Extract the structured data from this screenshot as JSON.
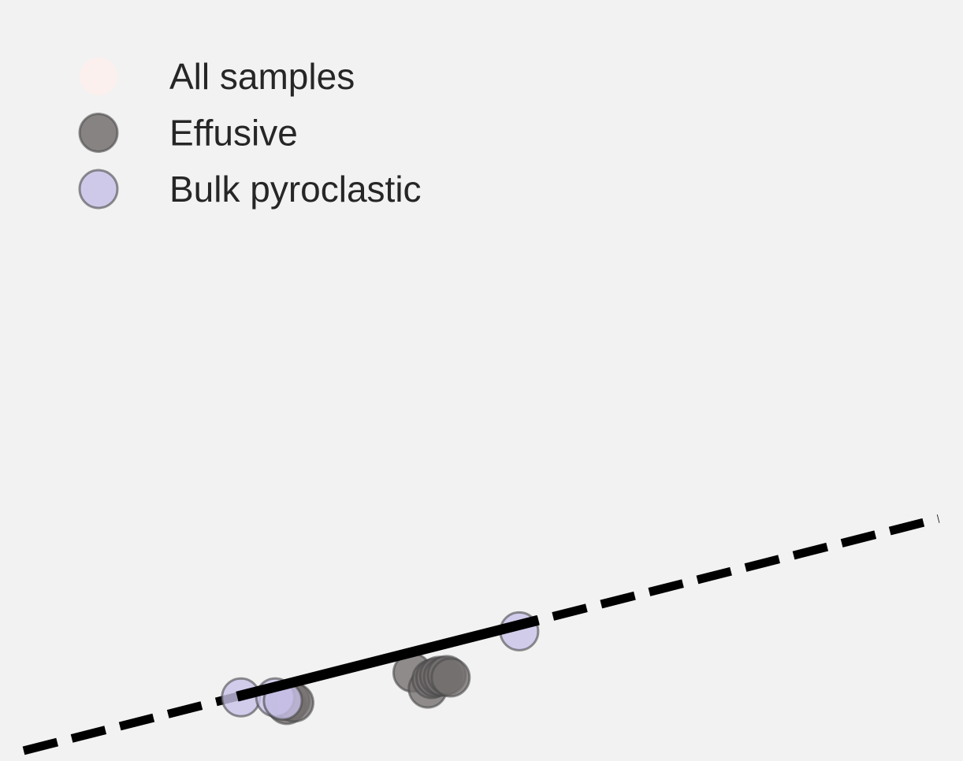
{
  "chart_data": {
    "type": "scatter",
    "title": "",
    "xlabel": "",
    "ylabel": "",
    "grid": false,
    "legend_position": "top-left",
    "legend": [
      {
        "name": "All samples",
        "color": "#fbf0ee"
      },
      {
        "name": "Effusive",
        "color": "#757070"
      },
      {
        "name": "Bulk pyroclastic",
        "color": "#c9c2e8"
      }
    ],
    "series": [
      {
        "name": "Effusive",
        "color": "#757070",
        "x": [
          3.4,
          3.45,
          3.5,
          3.55,
          5.1,
          5.3,
          5.35,
          5.4,
          5.45,
          5.5,
          5.55,
          5.6
        ],
        "y": [
          0.88,
          0.79,
          0.9,
          0.85,
          1.6,
          1.2,
          1.44,
          1.48,
          1.52,
          1.5,
          1.54,
          1.48
        ]
      },
      {
        "name": "Bulk pyroclastic",
        "color": "#c9c2e8",
        "x": [
          2.85,
          3.3,
          3.4,
          6.5
        ],
        "y": [
          0.98,
          0.98,
          0.9,
          2.64
        ]
      }
    ],
    "fit_line": {
      "x": [
        2.8,
        6.75
      ],
      "y": [
        1.0,
        2.92
      ],
      "style": "solid",
      "color": "#000000"
    },
    "extrapolation_line": {
      "x": [
        0.0,
        12.0
      ],
      "y": [
        -0.36,
        5.47
      ],
      "style": "dashed",
      "color": "#000000"
    },
    "xlim": [
      0,
      12
    ],
    "ylim": [
      -0.5,
      18.5
    ]
  }
}
